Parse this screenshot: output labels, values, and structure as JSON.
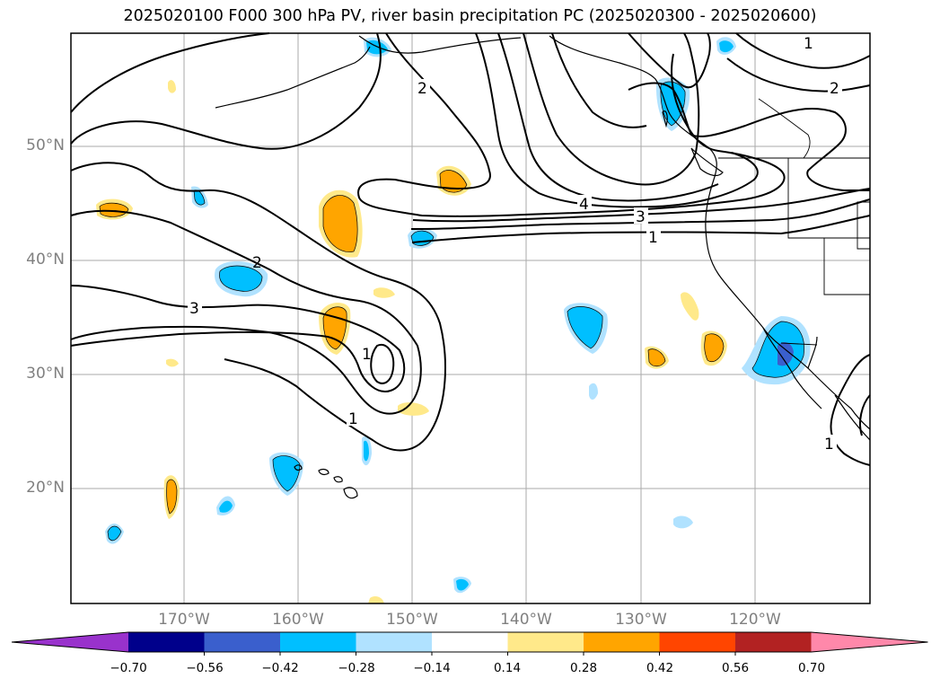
{
  "title": "2025020100 F000 300 hPa PV, river basin precipitation PC (2025020300 - 2025020600)",
  "latitude_labels": [
    "50°N",
    "40°N",
    "30°N",
    "20°N"
  ],
  "longitude_labels": [
    "170°W",
    "160°W",
    "150°W",
    "140°W",
    "130°W",
    "120°W"
  ],
  "contour_labels": [
    "2",
    "1",
    "2",
    "4",
    "3",
    "1",
    "3",
    "2",
    "1",
    "1",
    "1"
  ],
  "colorbar": {
    "ticks": [
      "−0.70",
      "−0.56",
      "−0.42",
      "−0.28",
      "−0.14",
      "0.14",
      "0.28",
      "0.42",
      "0.56",
      "0.70"
    ],
    "colors": [
      "#9932cc",
      "#00008b",
      "#3a5fcd",
      "#00bfff",
      "#b0e2ff",
      "#ffffff",
      "#ffe98a",
      "#ffa500",
      "#ff4500",
      "#b22222",
      "#ff88aa"
    ]
  },
  "colors": {
    "grid": "#aaaaaa",
    "coast": "#000000",
    "neg_light": "#b0e2ff",
    "neg_mid": "#00bfff",
    "neg_dark": "#3a5fcd",
    "pos_light": "#ffe98a",
    "pos_mid": "#ffa500",
    "pos_dark": "#ff4500"
  }
}
